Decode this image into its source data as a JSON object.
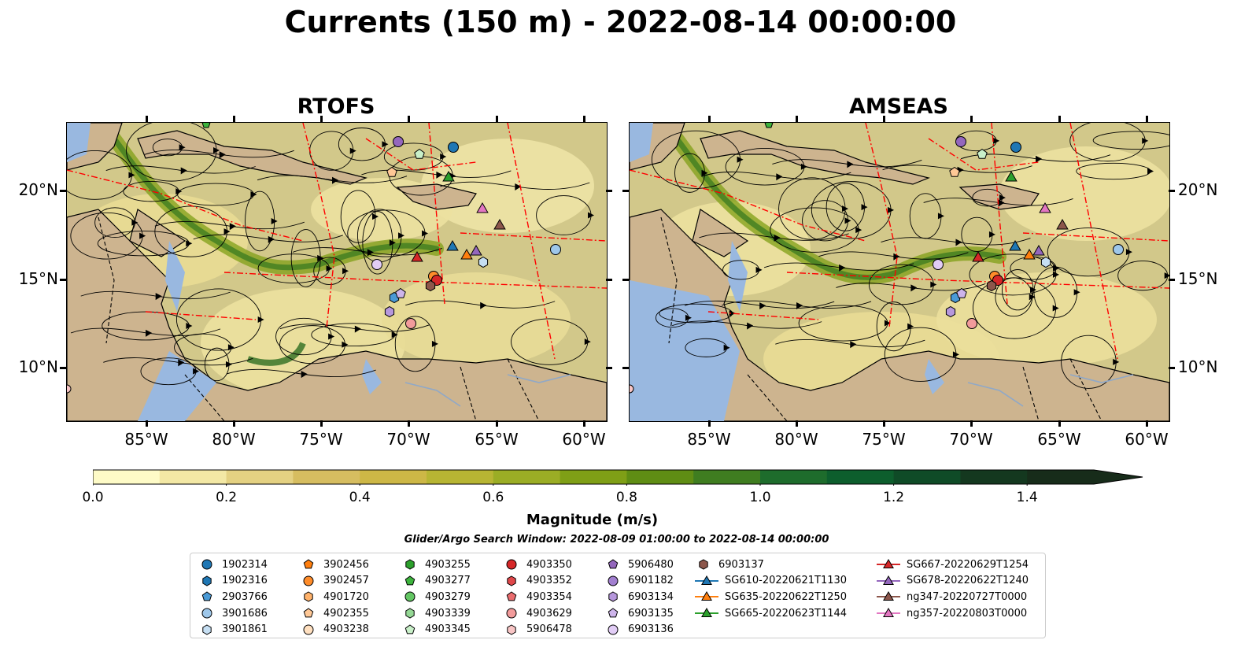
{
  "title": "Currents (150 m) - 2022-08-14 00:00:00",
  "panels": [
    {
      "title": "RTOFS",
      "name": "rtofs"
    },
    {
      "title": "AMSEAS",
      "name": "amseas"
    }
  ],
  "axes": {
    "lon_ticks": [
      "85°W",
      "80°W",
      "75°W",
      "70°W",
      "65°W",
      "60°W"
    ],
    "lat_ticks": [
      "20°N",
      "15°N",
      "10°N"
    ]
  },
  "map_layers": {
    "ocean_color": "#d2c88a",
    "land_color": "#cdb48f",
    "lake_color": "#99b8e0",
    "boundary_color": "#ff0000",
    "border_style": "dashed"
  },
  "colorbar": {
    "label": "Magnitude (m/s)",
    "min": 0.0,
    "max": 1.5,
    "extend": "max",
    "ticks": [
      "0.0",
      "0.2",
      "0.4",
      "0.6",
      "0.8",
      "1.0",
      "1.2",
      "1.4"
    ],
    "colors": [
      "#fefbc7",
      "#f3e8a5",
      "#e4d182",
      "#d6bd60",
      "#cdb746",
      "#b7b533",
      "#9bad25",
      "#7f9f16",
      "#5f8d14",
      "#3f7d20",
      "#1e6c2c",
      "#0d5e2d",
      "#0f4b27",
      "#14381f",
      "#172c1a"
    ]
  },
  "search_window": "Glider/Argo Search Window: 2022-08-09 01:00:00 to 2022-08-14 00:00:00",
  "legend": {
    "columns": [
      [
        {
          "label": "1902314",
          "marker": "circle",
          "color": "#1f77b4"
        },
        {
          "label": "1902316",
          "marker": "hexagon",
          "color": "#1f77b4"
        },
        {
          "label": "2903766",
          "marker": "pentagon",
          "color": "#4a9ad6"
        },
        {
          "label": "3901686",
          "marker": "circle",
          "color": "#9ec7ea"
        },
        {
          "label": "3901861",
          "marker": "hexagon",
          "color": "#c6dff3"
        }
      ],
      [
        {
          "label": "3902456",
          "marker": "pentagon",
          "color": "#ff7f0e"
        },
        {
          "label": "3902457",
          "marker": "circle",
          "color": "#ff8c2a"
        },
        {
          "label": "4901720",
          "marker": "hexagon",
          "color": "#ffb26b"
        },
        {
          "label": "4902355",
          "marker": "pentagon",
          "color": "#ffc896"
        },
        {
          "label": "4903238",
          "marker": "circle",
          "color": "#ffe0c0"
        }
      ],
      [
        {
          "label": "4903255",
          "marker": "hexagon",
          "color": "#2ca02c"
        },
        {
          "label": "4903277",
          "marker": "pentagon",
          "color": "#3db43d"
        },
        {
          "label": "4903279",
          "marker": "circle",
          "color": "#63c663"
        },
        {
          "label": "4903339",
          "marker": "hexagon",
          "color": "#95d895"
        },
        {
          "label": "4903345",
          "marker": "pentagon",
          "color": "#c9f0c9"
        }
      ],
      [
        {
          "label": "4903350",
          "marker": "circle",
          "color": "#d62728"
        },
        {
          "label": "4903352",
          "marker": "hexagon",
          "color": "#e0474a"
        },
        {
          "label": "4903354",
          "marker": "pentagon",
          "color": "#ea6c6e"
        },
        {
          "label": "4903629",
          "marker": "circle",
          "color": "#f29b9b"
        },
        {
          "label": "5906478",
          "marker": "hexagon",
          "color": "#f8c5c5"
        }
      ],
      [
        {
          "label": "5906480",
          "marker": "pentagon",
          "color": "#9467bd"
        },
        {
          "label": "6901182",
          "marker": "circle",
          "color": "#a27fd0"
        },
        {
          "label": "6903134",
          "marker": "hexagon",
          "color": "#b697dc"
        },
        {
          "label": "6903135",
          "marker": "pentagon",
          "color": "#cdb4ea"
        },
        {
          "label": "6903136",
          "marker": "circle",
          "color": "#e2cdf6"
        }
      ],
      [
        {
          "label": "6903137",
          "marker": "hexagon",
          "color": "#8c564b"
        },
        {
          "label": "SG610-20220621T1130",
          "marker": "triangle-line",
          "color": "#1f77b4"
        },
        {
          "label": "SG635-20220622T1250",
          "marker": "triangle-line",
          "color": "#ff7f0e"
        },
        {
          "label": "SG665-20220623T1144",
          "marker": "triangle-line",
          "color": "#2ca02c"
        }
      ],
      [
        {
          "label": "SG667-20220629T1254",
          "marker": "triangle-line",
          "color": "#d62728"
        },
        {
          "label": "SG678-20220622T1240",
          "marker": "triangle-line",
          "color": "#9467bd"
        },
        {
          "label": "ng347-20220727T0000",
          "marker": "triangle-line",
          "color": "#8c564b"
        },
        {
          "label": "ng357-20220803T0000",
          "marker": "triangle-line",
          "color": "#e377c2"
        }
      ]
    ]
  }
}
